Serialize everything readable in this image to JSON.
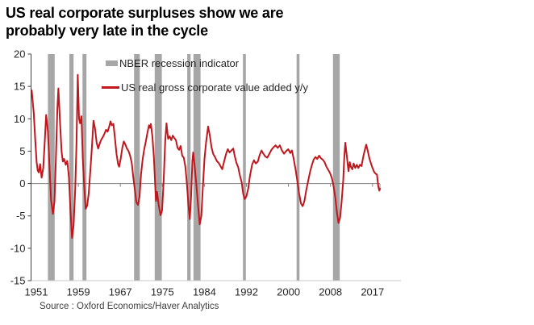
{
  "title": {
    "line1": "US real corporate surpluses show we are",
    "line2": "probably very late in the cycle"
  },
  "source": "Source : Oxford Economics/Haver Analytics",
  "legend": [
    {
      "label": "NBER recession indicator",
      "type": "bar",
      "color": "#a6a6a6"
    },
    {
      "label": "US real gross corporate value added y/y",
      "type": "line",
      "color": "#c0161c"
    }
  ],
  "chart_data": {
    "type": "line",
    "title": "US real corporate surpluses show we are probably very late in the cycle",
    "xlabel": "",
    "ylabel": "",
    "ylim": [
      -15,
      20
    ],
    "y_ticks": [
      20,
      15,
      10,
      5,
      0,
      -5,
      -10,
      -15
    ],
    "x_tick_labels": [
      "1951",
      "1959",
      "1967",
      "1975",
      "1984",
      "1992",
      "2000",
      "2008",
      "2017"
    ],
    "grid": "zero-line-only",
    "legend_position": "top-inside",
    "colors": {
      "line": "#c0161c",
      "recession_band": "#a6a6a6",
      "axis": "#404040",
      "zero_line": "#808080",
      "bottom_border": "#c8c8c8",
      "text": "#262626"
    },
    "recession_bands": [
      [
        1953.5,
        1954.8
      ],
      [
        1957.6,
        1958.4
      ],
      [
        1960.1,
        1960.85
      ],
      [
        1969.95,
        1971.05
      ],
      [
        1973.9,
        1975.25
      ],
      [
        1980.1,
        1980.75
      ],
      [
        1981.3,
        1982.65
      ],
      [
        1990.75,
        1991.3
      ],
      [
        2001.0,
        2001.55
      ],
      [
        2007.95,
        2009.25
      ]
    ],
    "series": [
      {
        "name": "US real gross corporate value added y/y",
        "points": [
          [
            1950.4,
            14.4
          ],
          [
            1950.8,
            10.8
          ],
          [
            1951.1,
            6.5
          ],
          [
            1951.35,
            3.2
          ],
          [
            1951.55,
            2.0
          ],
          [
            1951.75,
            1.7
          ],
          [
            1952.0,
            3.0
          ],
          [
            1952.3,
            0.9
          ],
          [
            1952.6,
            2.4
          ],
          [
            1952.9,
            6.5
          ],
          [
            1953.15,
            10.6
          ],
          [
            1953.5,
            8.0
          ],
          [
            1953.8,
            2.5
          ],
          [
            1954.1,
            -2.5
          ],
          [
            1954.45,
            -4.7
          ],
          [
            1954.75,
            -2.8
          ],
          [
            1955.0,
            3.5
          ],
          [
            1955.3,
            11.5
          ],
          [
            1955.5,
            14.7
          ],
          [
            1955.8,
            9.5
          ],
          [
            1956.1,
            5.0
          ],
          [
            1956.35,
            3.4
          ],
          [
            1956.6,
            3.8
          ],
          [
            1956.9,
            2.9
          ],
          [
            1957.2,
            3.5
          ],
          [
            1957.5,
            1.0
          ],
          [
            1957.8,
            -4.0
          ],
          [
            1958.1,
            -8.4
          ],
          [
            1958.4,
            -6.5
          ],
          [
            1958.7,
            -1.0
          ],
          [
            1958.95,
            6.0
          ],
          [
            1959.2,
            16.8
          ],
          [
            1959.45,
            10.0
          ],
          [
            1959.65,
            9.3
          ],
          [
            1959.9,
            10.4
          ],
          [
            1960.15,
            4.0
          ],
          [
            1960.4,
            0.0
          ],
          [
            1960.7,
            -3.9
          ],
          [
            1961.0,
            -3.4
          ],
          [
            1961.3,
            -1.5
          ],
          [
            1961.6,
            2.0
          ],
          [
            1961.9,
            5.5
          ],
          [
            1962.2,
            9.7
          ],
          [
            1962.5,
            8.5
          ],
          [
            1962.8,
            6.3
          ],
          [
            1963.1,
            5.4
          ],
          [
            1963.4,
            6.2
          ],
          [
            1963.7,
            6.8
          ],
          [
            1964.0,
            7.2
          ],
          [
            1964.3,
            7.7
          ],
          [
            1964.6,
            8.3
          ],
          [
            1964.9,
            8.0
          ],
          [
            1965.2,
            8.8
          ],
          [
            1965.45,
            9.6
          ],
          [
            1965.7,
            9.0
          ],
          [
            1966.0,
            9.2
          ],
          [
            1966.3,
            7.0
          ],
          [
            1966.6,
            4.6
          ],
          [
            1966.9,
            3.0
          ],
          [
            1967.1,
            2.6
          ],
          [
            1967.4,
            3.8
          ],
          [
            1967.7,
            5.5
          ],
          [
            1968.0,
            6.5
          ],
          [
            1968.3,
            6.0
          ],
          [
            1968.6,
            5.4
          ],
          [
            1968.9,
            5.0
          ],
          [
            1969.2,
            4.3
          ],
          [
            1969.5,
            3.2
          ],
          [
            1969.8,
            1.0
          ],
          [
            1970.1,
            -1.0
          ],
          [
            1970.4,
            -2.9
          ],
          [
            1970.7,
            -3.3
          ],
          [
            1971.0,
            -2.0
          ],
          [
            1971.3,
            1.5
          ],
          [
            1971.6,
            3.8
          ],
          [
            1971.9,
            5.3
          ],
          [
            1972.2,
            6.5
          ],
          [
            1972.5,
            7.8
          ],
          [
            1972.8,
            9.0
          ],
          [
            1973.0,
            8.6
          ],
          [
            1973.15,
            9.2
          ],
          [
            1973.45,
            7.3
          ],
          [
            1973.75,
            4.0
          ],
          [
            1974.0,
            -0.5
          ],
          [
            1974.15,
            -2.7
          ],
          [
            1974.35,
            -1.3
          ],
          [
            1974.65,
            -3.3
          ],
          [
            1975.0,
            -4.9
          ],
          [
            1975.3,
            -4.2
          ],
          [
            1975.6,
            0.5
          ],
          [
            1975.9,
            6.5
          ],
          [
            1976.15,
            9.3
          ],
          [
            1976.45,
            6.9
          ],
          [
            1976.75,
            7.3
          ],
          [
            1977.05,
            6.7
          ],
          [
            1977.35,
            7.4
          ],
          [
            1977.65,
            7.0
          ],
          [
            1977.95,
            6.7
          ],
          [
            1978.25,
            5.5
          ],
          [
            1978.55,
            5.2
          ],
          [
            1978.85,
            5.8
          ],
          [
            1979.15,
            4.3
          ],
          [
            1979.45,
            4.0
          ],
          [
            1979.75,
            2.6
          ],
          [
            1980.05,
            0.0
          ],
          [
            1980.35,
            -3.5
          ],
          [
            1980.6,
            -5.5
          ],
          [
            1980.85,
            -2.0
          ],
          [
            1981.1,
            3.5
          ],
          [
            1981.25,
            4.8
          ],
          [
            1981.5,
            3.0
          ],
          [
            1981.8,
            0.3
          ],
          [
            1982.1,
            -2.6
          ],
          [
            1982.5,
            -6.3
          ],
          [
            1982.8,
            -5.0
          ],
          [
            1983.1,
            -0.5
          ],
          [
            1983.4,
            3.8
          ],
          [
            1983.7,
            6.3
          ],
          [
            1984.1,
            8.8
          ],
          [
            1984.45,
            7.3
          ],
          [
            1984.75,
            5.6
          ],
          [
            1985.05,
            4.6
          ],
          [
            1985.4,
            4.1
          ],
          [
            1985.75,
            3.5
          ],
          [
            1986.1,
            3.2
          ],
          [
            1986.45,
            2.7
          ],
          [
            1986.8,
            2.2
          ],
          [
            1987.15,
            3.4
          ],
          [
            1987.5,
            4.5
          ],
          [
            1987.85,
            5.3
          ],
          [
            1988.2,
            4.8
          ],
          [
            1988.55,
            5.1
          ],
          [
            1988.9,
            5.4
          ],
          [
            1989.2,
            4.2
          ],
          [
            1989.5,
            3.2
          ],
          [
            1989.85,
            2.5
          ],
          [
            1990.15,
            1.3
          ],
          [
            1990.5,
            0.2
          ],
          [
            1990.8,
            -1.6
          ],
          [
            1991.1,
            -2.4
          ],
          [
            1991.4,
            -2.0
          ],
          [
            1991.75,
            -0.8
          ],
          [
            1992.1,
            1.2
          ],
          [
            1992.5,
            2.9
          ],
          [
            1992.85,
            3.6
          ],
          [
            1993.2,
            3.1
          ],
          [
            1993.6,
            3.4
          ],
          [
            1993.95,
            4.4
          ],
          [
            1994.3,
            5.1
          ],
          [
            1994.65,
            4.6
          ],
          [
            1995.0,
            4.2
          ],
          [
            1995.4,
            4.0
          ],
          [
            1995.8,
            4.6
          ],
          [
            1996.2,
            5.2
          ],
          [
            1996.6,
            5.6
          ],
          [
            1997.0,
            5.9
          ],
          [
            1997.4,
            5.5
          ],
          [
            1997.8,
            5.9
          ],
          [
            1998.2,
            5.1
          ],
          [
            1998.6,
            4.6
          ],
          [
            1999.0,
            5.0
          ],
          [
            1999.4,
            5.3
          ],
          [
            1999.8,
            4.7
          ],
          [
            2000.1,
            5.1
          ],
          [
            2000.45,
            3.8
          ],
          [
            2000.8,
            2.2
          ],
          [
            2001.15,
            0.3
          ],
          [
            2001.5,
            -1.6
          ],
          [
            2001.85,
            -3.1
          ],
          [
            2002.15,
            -3.5
          ],
          [
            2002.5,
            -2.7
          ],
          [
            2002.85,
            -1.0
          ],
          [
            2003.2,
            0.4
          ],
          [
            2003.55,
            1.7
          ],
          [
            2003.9,
            2.8
          ],
          [
            2004.25,
            3.7
          ],
          [
            2004.6,
            4.1
          ],
          [
            2004.95,
            3.8
          ],
          [
            2005.3,
            4.3
          ],
          [
            2005.65,
            3.9
          ],
          [
            2006.0,
            3.7
          ],
          [
            2006.35,
            3.3
          ],
          [
            2006.7,
            2.6
          ],
          [
            2007.05,
            2.1
          ],
          [
            2007.4,
            1.6
          ],
          [
            2007.75,
            0.8
          ],
          [
            2008.1,
            -0.6
          ],
          [
            2008.4,
            -2.2
          ],
          [
            2008.7,
            -4.5
          ],
          [
            2009.0,
            -6.1
          ],
          [
            2009.3,
            -5.3
          ],
          [
            2009.6,
            -2.8
          ],
          [
            2009.9,
            0.5
          ],
          [
            2010.1,
            4.0
          ],
          [
            2010.3,
            6.3
          ],
          [
            2010.6,
            4.2
          ],
          [
            2010.9,
            1.9
          ],
          [
            2011.15,
            3.3
          ],
          [
            2011.4,
            2.5
          ],
          [
            2011.65,
            2.2
          ],
          [
            2011.9,
            3.1
          ],
          [
            2012.2,
            2.4
          ],
          [
            2012.5,
            2.9
          ],
          [
            2012.8,
            2.4
          ],
          [
            2013.1,
            2.9
          ],
          [
            2013.4,
            2.7
          ],
          [
            2013.7,
            4.0
          ],
          [
            2014.0,
            5.1
          ],
          [
            2014.3,
            6.0
          ],
          [
            2014.6,
            5.0
          ],
          [
            2014.9,
            3.9
          ],
          [
            2015.2,
            3.1
          ],
          [
            2015.5,
            2.4
          ],
          [
            2015.8,
            1.8
          ],
          [
            2016.1,
            1.5
          ],
          [
            2016.35,
            1.4
          ],
          [
            2016.6,
            -0.4
          ],
          [
            2016.8,
            -1.1
          ],
          [
            2016.95,
            -0.8
          ]
        ]
      }
    ]
  }
}
